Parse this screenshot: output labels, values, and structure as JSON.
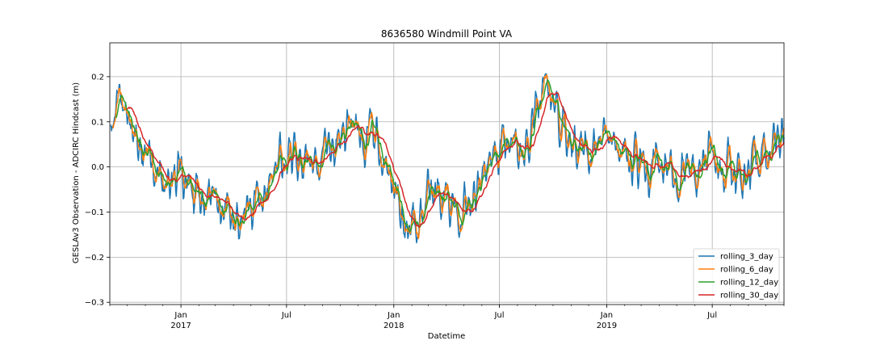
{
  "chart_data": {
    "type": "line",
    "title": "8636580 Windmill Point VA",
    "xlabel": "Datetime",
    "ylabel": "GESLAv3 Observation - ADCIRC Hindcast (m)",
    "xlim": [
      "2016-09-01",
      "2019-11-01"
    ],
    "ylim": [
      -0.305,
      0.275
    ],
    "grid": true,
    "legend_position": "lower-right",
    "y_ticks": [
      -0.3,
      -0.2,
      -0.1,
      0.0,
      0.1,
      0.2
    ],
    "y_tick_labels": [
      "−0.3",
      "−0.2",
      "−0.1",
      "0.0",
      "0.1",
      "0.2"
    ],
    "x_major_ticks": [
      {
        "date": "2017-01-01",
        "label": "Jan",
        "sublabel": "2017"
      },
      {
        "date": "2017-07-01",
        "label": "Jul",
        "sublabel": ""
      },
      {
        "date": "2018-01-01",
        "label": "Jan",
        "sublabel": "2018"
      },
      {
        "date": "2018-07-01",
        "label": "Jul",
        "sublabel": ""
      },
      {
        "date": "2019-01-01",
        "label": "Jan",
        "sublabel": "2019"
      },
      {
        "date": "2019-07-01",
        "label": "Jul",
        "sublabel": ""
      }
    ],
    "key_points": [
      {
        "date": "2016-09-02",
        "value": 0.15
      },
      {
        "date": "2016-09-20",
        "value": 0.1
      },
      {
        "date": "2016-10-10",
        "value": 0.07
      },
      {
        "date": "2016-11-01",
        "value": 0.02
      },
      {
        "date": "2016-11-25",
        "value": -0.03
      },
      {
        "date": "2016-12-15",
        "value": -0.04
      },
      {
        "date": "2017-01-01",
        "value": -0.03
      },
      {
        "date": "2017-01-20",
        "value": -0.05
      },
      {
        "date": "2017-02-10",
        "value": -0.08
      },
      {
        "date": "2017-03-01",
        "value": -0.1
      },
      {
        "date": "2017-03-25",
        "value": -0.1
      },
      {
        "date": "2017-04-15",
        "value": -0.11
      },
      {
        "date": "2017-05-01",
        "value": -0.09
      },
      {
        "date": "2017-05-20",
        "value": -0.04
      },
      {
        "date": "2017-06-10",
        "value": -0.02
      },
      {
        "date": "2017-07-01",
        "value": 0.02
      },
      {
        "date": "2017-07-25",
        "value": 0.02
      },
      {
        "date": "2017-08-15",
        "value": 0.0
      },
      {
        "date": "2017-09-05",
        "value": 0.02
      },
      {
        "date": "2017-10-01",
        "value": 0.06
      },
      {
        "date": "2017-10-25",
        "value": 0.07
      },
      {
        "date": "2017-11-15",
        "value": 0.07
      },
      {
        "date": "2017-12-05",
        "value": 0.04
      },
      {
        "date": "2017-12-25",
        "value": -0.02
      },
      {
        "date": "2018-01-10",
        "value": -0.1
      },
      {
        "date": "2018-01-25",
        "value": -0.15
      },
      {
        "date": "2018-02-15",
        "value": -0.12
      },
      {
        "date": "2018-03-05",
        "value": -0.06
      },
      {
        "date": "2018-03-25",
        "value": -0.05
      },
      {
        "date": "2018-04-15",
        "value": -0.07
      },
      {
        "date": "2018-05-05",
        "value": -0.06
      },
      {
        "date": "2018-05-25",
        "value": -0.02
      },
      {
        "date": "2018-06-15",
        "value": 0.01
      },
      {
        "date": "2018-07-05",
        "value": 0.03
      },
      {
        "date": "2018-07-25",
        "value": 0.02
      },
      {
        "date": "2018-08-10",
        "value": 0.04
      },
      {
        "date": "2018-08-25",
        "value": 0.1
      },
      {
        "date": "2018-09-10",
        "value": 0.15
      },
      {
        "date": "2018-09-25",
        "value": 0.16
      },
      {
        "date": "2018-10-10",
        "value": 0.1
      },
      {
        "date": "2018-10-25",
        "value": 0.05
      },
      {
        "date": "2018-11-15",
        "value": 0.05
      },
      {
        "date": "2018-12-10",
        "value": 0.07
      },
      {
        "date": "2019-01-05",
        "value": 0.06
      },
      {
        "date": "2019-01-25",
        "value": 0.05
      },
      {
        "date": "2019-02-15",
        "value": 0.0
      },
      {
        "date": "2019-03-10",
        "value": -0.02
      },
      {
        "date": "2019-04-01",
        "value": 0.01
      },
      {
        "date": "2019-04-25",
        "value": -0.04
      },
      {
        "date": "2019-05-20",
        "value": 0.0
      },
      {
        "date": "2019-06-15",
        "value": 0.02
      },
      {
        "date": "2019-07-10",
        "value": 0.01
      },
      {
        "date": "2019-08-05",
        "value": 0.0
      },
      {
        "date": "2019-08-25",
        "value": -0.01
      },
      {
        "date": "2019-09-15",
        "value": 0.02
      },
      {
        "date": "2019-10-05",
        "value": 0.07
      },
      {
        "date": "2019-10-31",
        "value": 0.08
      }
    ],
    "series": [
      {
        "name": "rolling_3_day",
        "color": "#1f77b4",
        "window_days": 3
      },
      {
        "name": "rolling_6_day",
        "color": "#ff7f0e",
        "window_days": 6
      },
      {
        "name": "rolling_12_day",
        "color": "#2ca02c",
        "window_days": 12
      },
      {
        "name": "rolling_30_day",
        "color": "#d62728",
        "window_days": 30
      }
    ]
  }
}
